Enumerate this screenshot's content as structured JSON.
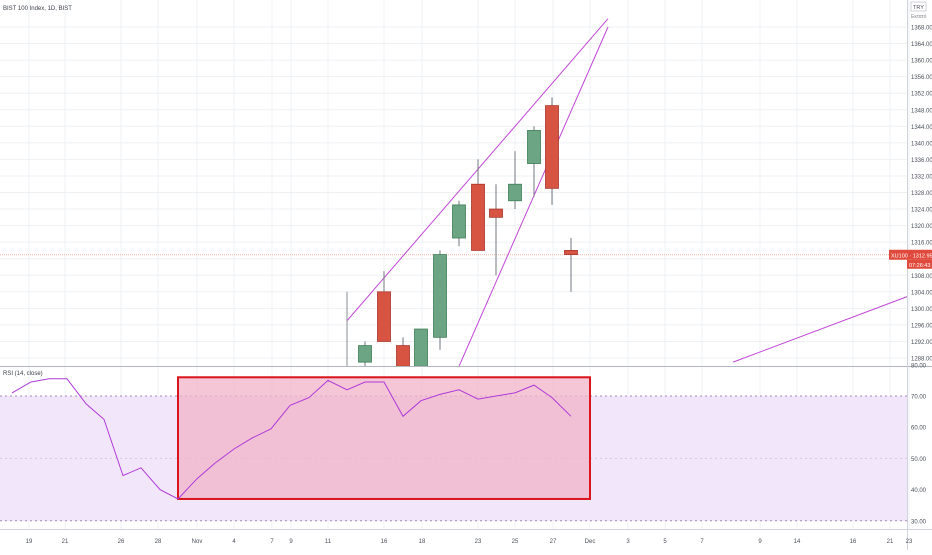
{
  "header": {
    "symbol_label": "BIST 100 Index, 1D, BIST"
  },
  "price_axis": {
    "currency": "TRY",
    "scale_button": "Εκτατό",
    "ticks": [
      "1368.00",
      "1364.00",
      "1360.00",
      "1356.00",
      "1352.00",
      "1348.00",
      "1344.00",
      "1340.00",
      "1336.00",
      "1332.00",
      "1328.00",
      "1324.00",
      "1320.00",
      "1316.00",
      "1312.00",
      "1308.00",
      "1304.00",
      "1300.00",
      "1296.00",
      "1292.00",
      "1288.00"
    ],
    "last_price_tag": "XU100 · 1312.95",
    "countdown_tag": "07:26:43"
  },
  "rsi_panel": {
    "label": "RSI (14, close)",
    "ticks": [
      "80.00",
      "70.00",
      "60.00",
      "50.00",
      "40.00",
      "30.00"
    ]
  },
  "time_axis": {
    "labels": [
      "19",
      "21",
      "26",
      "28",
      "Nov",
      "4",
      "7",
      "9",
      "11",
      "16",
      "18",
      "23",
      "25",
      "27",
      "Dec",
      "3",
      "5",
      "7",
      "9",
      "14",
      "16",
      "21",
      "23"
    ]
  },
  "colors": {
    "up": "#6ba583",
    "down": "#d75442",
    "trendline": "#c147d6",
    "rsi_line": "#b03ad8",
    "rsi_band": "#f2e6fb",
    "highlight_border": "#d9141b",
    "highlight_fill": "#f0b3c8",
    "price_tag": "#e04a3c",
    "grid": "#eef1f4",
    "axis_text": "#4a4f58"
  },
  "chart_data": [
    {
      "type": "candlestick",
      "title": "BIST 100 Index, 1D, BIST",
      "ylim": [
        1286,
        1372
      ],
      "candles": [
        {
          "date": "Nov 13",
          "open": null,
          "high": 1304,
          "low": null,
          "close": null
        },
        {
          "date": "Nov 14",
          "open": 1287,
          "high": 1292,
          "low": 1285,
          "close": 1291
        },
        {
          "date": "Nov 15",
          "open": 1304,
          "high": 1309,
          "low": 1292,
          "close": 1292
        },
        {
          "date": "Nov 16",
          "open": 1291,
          "high": 1293,
          "low": 1284,
          "close": 1286
        },
        {
          "date": "Nov 17",
          "open": 1286,
          "high": 1295,
          "low": 1285,
          "close": 1295
        },
        {
          "date": "Nov 20",
          "open": 1293,
          "high": 1314,
          "low": 1290,
          "close": 1313
        },
        {
          "date": "Nov 21",
          "open": 1317,
          "high": 1326,
          "low": 1315,
          "close": 1325
        },
        {
          "date": "Nov 22",
          "open": 1330,
          "high": 1336,
          "low": 1314,
          "close": 1314
        },
        {
          "date": "Nov 23",
          "open": 1324,
          "high": 1330,
          "low": 1308,
          "close": 1322
        },
        {
          "date": "Nov 24",
          "open": 1326,
          "high": 1338,
          "low": 1324,
          "close": 1330
        },
        {
          "date": "Nov 27",
          "open": 1335,
          "high": 1344,
          "low": 1327,
          "close": 1343
        },
        {
          "date": "Nov 28",
          "open": 1349,
          "high": 1351,
          "low": 1325,
          "close": 1329
        },
        {
          "date": "Nov 29",
          "open": 1314,
          "high": 1317,
          "low": 1304,
          "close": 1313
        }
      ],
      "last_price": 1312.95,
      "trendlines": [
        {
          "from": {
            "date": "Nov 10",
            "price": 1297
          },
          "to": {
            "date": "Dec 1",
            "price": 1370
          }
        },
        {
          "from": {
            "date": "Nov 21",
            "price": 1286
          },
          "to": {
            "date": "Dec 1",
            "price": 1368
          }
        },
        {
          "from": {
            "date": "Dec 9",
            "price": 1287
          },
          "to": {
            "date": "Dec 24",
            "price": 1303
          }
        }
      ]
    },
    {
      "type": "line",
      "title": "RSI (14, close)",
      "ylim": [
        28,
        82
      ],
      "bands": [
        30,
        70
      ],
      "x": [
        "Oct 17",
        "Oct 18",
        "Oct 19",
        "Oct 20",
        "Oct 23",
        "Oct 24",
        "Oct 25",
        "Oct 26",
        "Oct 27",
        "Oct 30",
        "Oct 31",
        "Nov 1",
        "Nov 2",
        "Nov 3",
        "Nov 6",
        "Nov 7",
        "Nov 8",
        "Nov 9",
        "Nov 10",
        "Nov 13",
        "Nov 14",
        "Nov 15",
        "Nov 16",
        "Nov 17",
        "Nov 20",
        "Nov 21",
        "Nov 22",
        "Nov 23",
        "Nov 24",
        "Nov 27",
        "Nov 28",
        "Nov 29"
      ],
      "values": [
        71,
        74.5,
        75.5,
        75.5,
        67.5,
        62.5,
        44.5,
        47,
        40,
        37,
        43.5,
        48.5,
        53,
        56.5,
        59.5,
        67,
        69.5,
        75,
        72,
        74.5,
        74.5,
        63.5,
        68.5,
        70.5,
        72,
        69,
        70,
        71,
        73.5,
        69.5,
        63.5,
        null
      ],
      "highlight_box": {
        "x_from": "Oct 31",
        "x_to": "Nov 29",
        "y_from": 37,
        "y_to": 76
      }
    }
  ]
}
